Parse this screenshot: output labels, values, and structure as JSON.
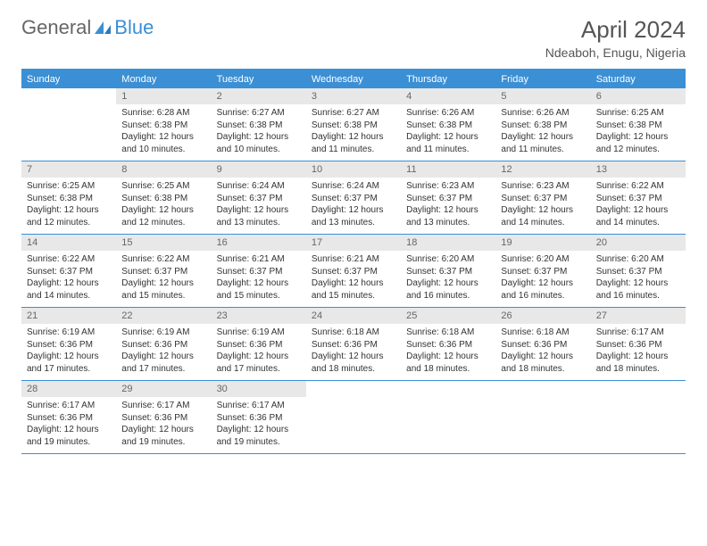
{
  "logo": {
    "text1": "General",
    "text2": "Blue"
  },
  "title": "April 2024",
  "location": "Ndeaboh, Enugu, Nigeria",
  "dayNames": [
    "Sunday",
    "Monday",
    "Tuesday",
    "Wednesday",
    "Thursday",
    "Friday",
    "Saturday"
  ],
  "colors": {
    "accent": "#3b8fd4",
    "dayBg": "#e8e8e8"
  },
  "weeks": [
    [
      null,
      {
        "n": "1",
        "sr": "6:28 AM",
        "ss": "6:38 PM",
        "dl": "12 hours and 10 minutes."
      },
      {
        "n": "2",
        "sr": "6:27 AM",
        "ss": "6:38 PM",
        "dl": "12 hours and 10 minutes."
      },
      {
        "n": "3",
        "sr": "6:27 AM",
        "ss": "6:38 PM",
        "dl": "12 hours and 11 minutes."
      },
      {
        "n": "4",
        "sr": "6:26 AM",
        "ss": "6:38 PM",
        "dl": "12 hours and 11 minutes."
      },
      {
        "n": "5",
        "sr": "6:26 AM",
        "ss": "6:38 PM",
        "dl": "12 hours and 11 minutes."
      },
      {
        "n": "6",
        "sr": "6:25 AM",
        "ss": "6:38 PM",
        "dl": "12 hours and 12 minutes."
      }
    ],
    [
      {
        "n": "7",
        "sr": "6:25 AM",
        "ss": "6:38 PM",
        "dl": "12 hours and 12 minutes."
      },
      {
        "n": "8",
        "sr": "6:25 AM",
        "ss": "6:38 PM",
        "dl": "12 hours and 12 minutes."
      },
      {
        "n": "9",
        "sr": "6:24 AM",
        "ss": "6:37 PM",
        "dl": "12 hours and 13 minutes."
      },
      {
        "n": "10",
        "sr": "6:24 AM",
        "ss": "6:37 PM",
        "dl": "12 hours and 13 minutes."
      },
      {
        "n": "11",
        "sr": "6:23 AM",
        "ss": "6:37 PM",
        "dl": "12 hours and 13 minutes."
      },
      {
        "n": "12",
        "sr": "6:23 AM",
        "ss": "6:37 PM",
        "dl": "12 hours and 14 minutes."
      },
      {
        "n": "13",
        "sr": "6:22 AM",
        "ss": "6:37 PM",
        "dl": "12 hours and 14 minutes."
      }
    ],
    [
      {
        "n": "14",
        "sr": "6:22 AM",
        "ss": "6:37 PM",
        "dl": "12 hours and 14 minutes."
      },
      {
        "n": "15",
        "sr": "6:22 AM",
        "ss": "6:37 PM",
        "dl": "12 hours and 15 minutes."
      },
      {
        "n": "16",
        "sr": "6:21 AM",
        "ss": "6:37 PM",
        "dl": "12 hours and 15 minutes."
      },
      {
        "n": "17",
        "sr": "6:21 AM",
        "ss": "6:37 PM",
        "dl": "12 hours and 15 minutes."
      },
      {
        "n": "18",
        "sr": "6:20 AM",
        "ss": "6:37 PM",
        "dl": "12 hours and 16 minutes."
      },
      {
        "n": "19",
        "sr": "6:20 AM",
        "ss": "6:37 PM",
        "dl": "12 hours and 16 minutes."
      },
      {
        "n": "20",
        "sr": "6:20 AM",
        "ss": "6:37 PM",
        "dl": "12 hours and 16 minutes."
      }
    ],
    [
      {
        "n": "21",
        "sr": "6:19 AM",
        "ss": "6:36 PM",
        "dl": "12 hours and 17 minutes."
      },
      {
        "n": "22",
        "sr": "6:19 AM",
        "ss": "6:36 PM",
        "dl": "12 hours and 17 minutes."
      },
      {
        "n": "23",
        "sr": "6:19 AM",
        "ss": "6:36 PM",
        "dl": "12 hours and 17 minutes."
      },
      {
        "n": "24",
        "sr": "6:18 AM",
        "ss": "6:36 PM",
        "dl": "12 hours and 18 minutes."
      },
      {
        "n": "25",
        "sr": "6:18 AM",
        "ss": "6:36 PM",
        "dl": "12 hours and 18 minutes."
      },
      {
        "n": "26",
        "sr": "6:18 AM",
        "ss": "6:36 PM",
        "dl": "12 hours and 18 minutes."
      },
      {
        "n": "27",
        "sr": "6:17 AM",
        "ss": "6:36 PM",
        "dl": "12 hours and 18 minutes."
      }
    ],
    [
      {
        "n": "28",
        "sr": "6:17 AM",
        "ss": "6:36 PM",
        "dl": "12 hours and 19 minutes."
      },
      {
        "n": "29",
        "sr": "6:17 AM",
        "ss": "6:36 PM",
        "dl": "12 hours and 19 minutes."
      },
      {
        "n": "30",
        "sr": "6:17 AM",
        "ss": "6:36 PM",
        "dl": "12 hours and 19 minutes."
      },
      null,
      null,
      null,
      null
    ]
  ],
  "labels": {
    "sunrise": "Sunrise: ",
    "sunset": "Sunset: ",
    "daylight": "Daylight: "
  }
}
